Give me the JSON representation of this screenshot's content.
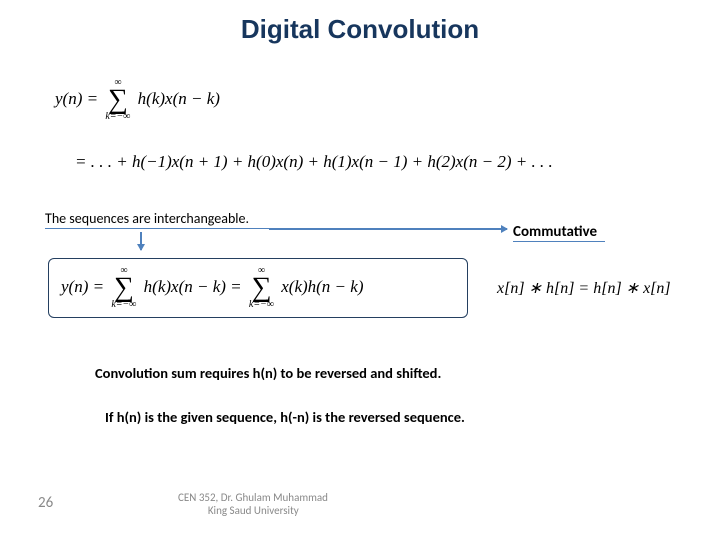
{
  "title": "Digital Convolution",
  "eq1_pre": "y(n) = ",
  "sum_top": "∞",
  "sum_bot": "k=−∞",
  "eq1_post": " h(k)x(n − k)",
  "eq2": "= . . . + h(−1)x(n + 1) + h(0)x(n) + h(1)x(n − 1) + h(2)x(n − 2) + . . .",
  "interchange_note": "The sequences are interchangeable.",
  "commutative_label": "Commutative",
  "eq3_pre": "y(n) = ",
  "eq3_mid": " h(k)x(n − k)  =  ",
  "eq3_post": " x(k)h(n − k)",
  "eq_right": "x[n] ∗ h[n] = h[n] ∗ x[n]",
  "note1": "Convolution sum requires h(n) to be reversed and shifted.",
  "note2": "If h(n) is the given sequence, h(-n) is the reversed sequence.",
  "page_number": "26",
  "footer_line1": "CEN 352, Dr. Ghulam Muhammad",
  "footer_line2": "King Saud University"
}
